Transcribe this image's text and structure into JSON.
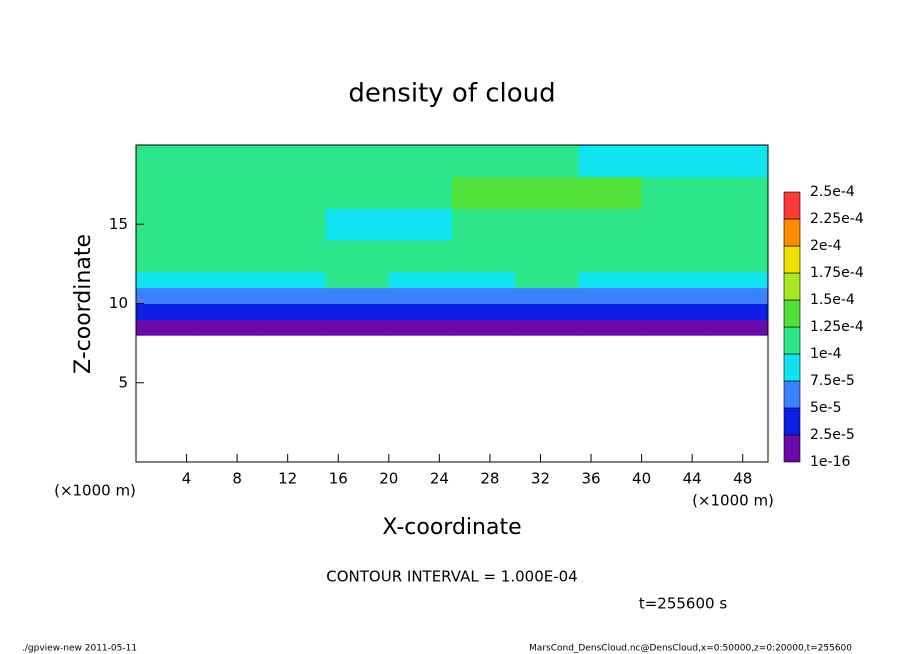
{
  "chart_data": {
    "type": "heatmap",
    "title": "density of cloud",
    "xlabel": "X-coordinate",
    "ylabel": "Z-coordinate",
    "y_unit": "(×1000 m)",
    "x_unit": "(×1000 m)",
    "note": "CONTOUR INTERVAL = 1.000E-04",
    "time": "t=255600 s",
    "footer_left": "./gpview-new  2011-05-11",
    "footer_right": "MarsCond_DensCloud.nc@DensCloud,x=0:50000,z=0:20000,t=255600",
    "xlim": [
      0,
      50
    ],
    "ylim": [
      0,
      20
    ],
    "xticks": [
      4,
      8,
      12,
      16,
      20,
      24,
      28,
      32,
      36,
      40,
      44,
      48
    ],
    "yticks": [
      5,
      10,
      15
    ],
    "xbins": [
      0,
      5,
      10,
      15,
      20,
      25,
      30,
      35,
      40,
      45,
      50
    ],
    "ybins": [
      8,
      9,
      10,
      11,
      12,
      14,
      16,
      18,
      20
    ],
    "values": [
      [
        1e-05,
        1e-05,
        1e-05,
        1e-05,
        1e-05,
        1e-05,
        1e-05,
        1e-05,
        1e-05,
        1e-05
      ],
      [
        4e-05,
        4e-05,
        4e-05,
        4e-05,
        4e-05,
        4e-05,
        4e-05,
        4e-05,
        4e-05,
        4e-05
      ],
      [
        7e-05,
        7e-05,
        7e-05,
        7e-05,
        7e-05,
        7e-05,
        7e-05,
        7e-05,
        7e-05,
        7e-05
      ],
      [
        9.5e-05,
        9.5e-05,
        9.5e-05,
        0.00011,
        9.5e-05,
        9.5e-05,
        0.00011,
        9.5e-05,
        9.5e-05,
        9.5e-05
      ],
      [
        0.00011,
        0.00011,
        0.00011,
        0.00011,
        0.00011,
        0.00011,
        0.00011,
        0.00011,
        0.00011,
        0.00011
      ],
      [
        0.00012,
        0.00012,
        0.00012,
        9e-05,
        9e-05,
        0.00012,
        0.00012,
        0.00012,
        0.00012,
        0.00012
      ],
      [
        0.00012,
        0.00012,
        0.00012,
        0.00012,
        0.00012,
        0.00013,
        0.00013,
        0.00013,
        0.00012,
        0.00012
      ],
      [
        0.00011,
        0.00011,
        0.00011,
        0.00011,
        0.00011,
        0.00011,
        0.00011,
        9e-05,
        9e-05,
        9e-05
      ]
    ],
    "levels": [
      {
        "value": 1e-16,
        "label": "1e-16"
      },
      {
        "value": 2.5e-05,
        "label": "2.5e-5"
      },
      {
        "value": 5e-05,
        "label": "5e-5"
      },
      {
        "value": 7.5e-05,
        "label": "7.5e-5"
      },
      {
        "value": 0.0001,
        "label": "1e-4"
      },
      {
        "value": 0.000125,
        "label": "1.25e-4"
      },
      {
        "value": 0.00015,
        "label": "1.5e-4"
      },
      {
        "value": 0.000175,
        "label": "1.75e-4"
      },
      {
        "value": 0.0002,
        "label": "2e-4"
      },
      {
        "value": 0.000225,
        "label": "2.25e-4"
      },
      {
        "value": 0.00025,
        "label": "2.5e-4"
      }
    ],
    "colors": [
      "#6a0aa8",
      "#0a1ee6",
      "#3c82ff",
      "#10e4f0",
      "#2ee68a",
      "#52e03a",
      "#a8e820",
      "#f0e000",
      "#ff8c00",
      "#ff3838"
    ]
  }
}
